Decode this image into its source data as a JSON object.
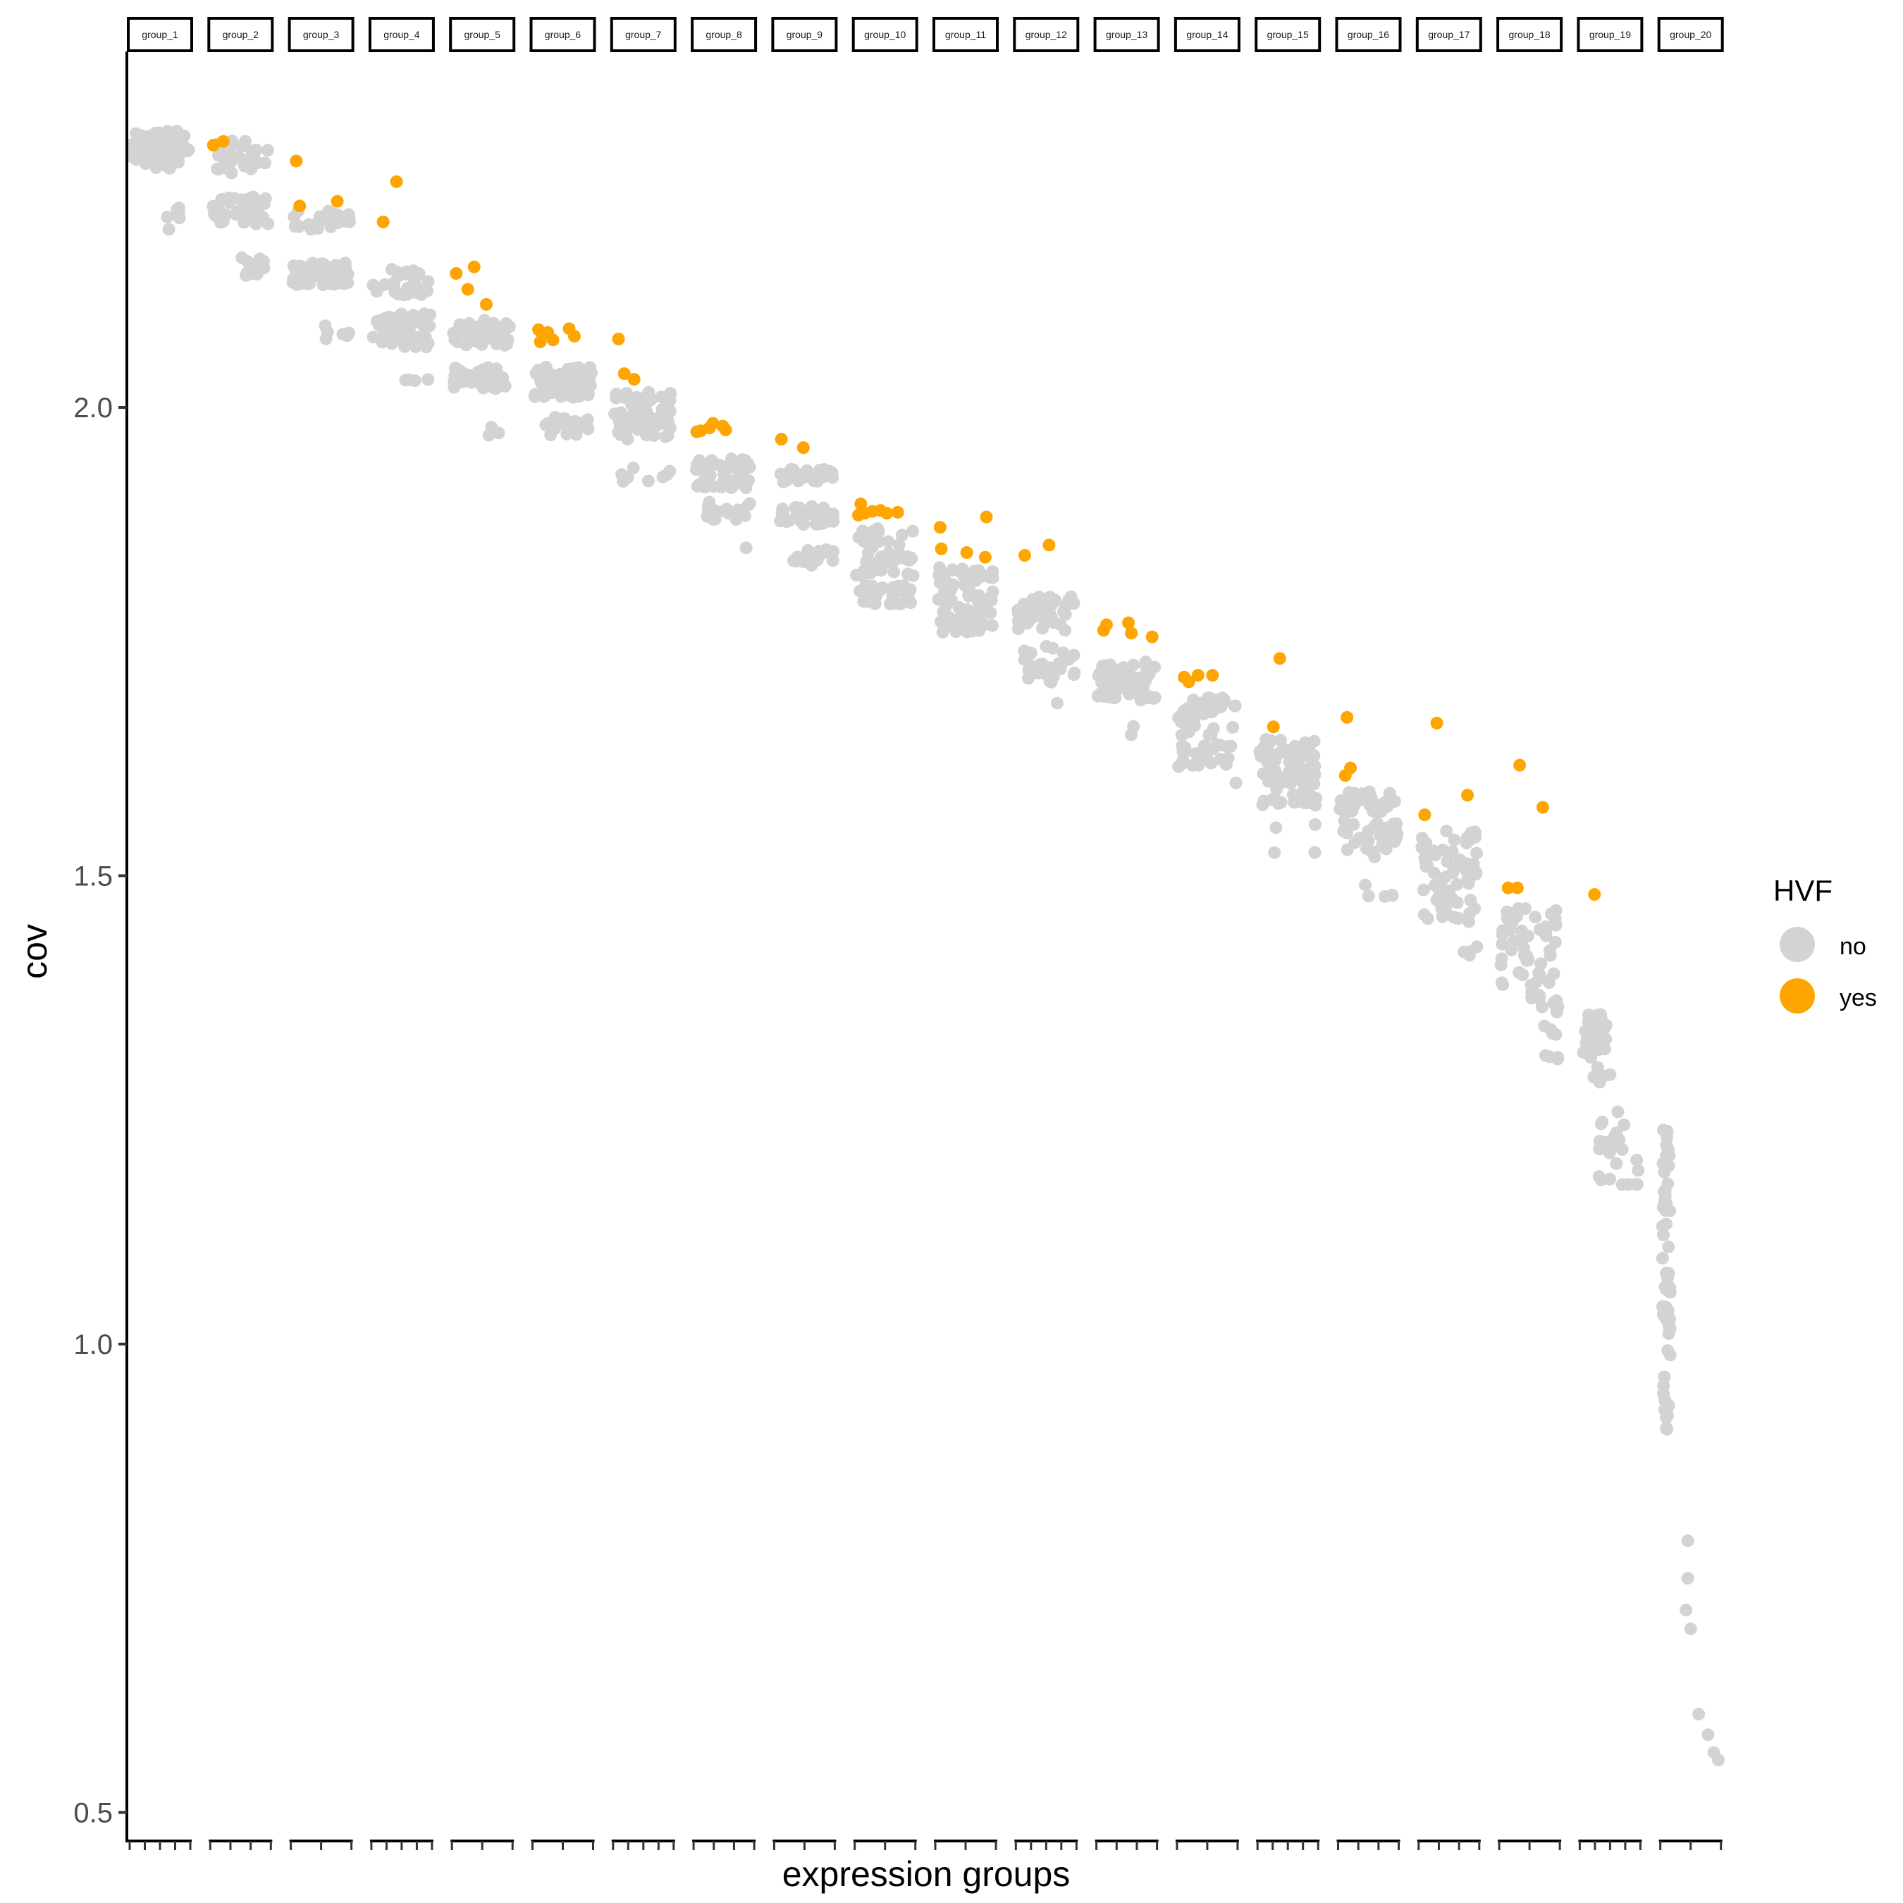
{
  "chart_data": {
    "type": "scatter",
    "title": "",
    "xlabel": "expression groups",
    "ylabel": "cov",
    "ylim": [
      0.47,
      2.38
    ],
    "yticks": [
      0.5,
      1.0,
      1.5,
      2.0
    ],
    "ytick_labels": [
      "0.5",
      "1.0",
      "1.5",
      "2.0"
    ],
    "legend": {
      "title": "HVF",
      "position": "right",
      "entries": [
        {
          "label": "no",
          "color": "#D3D3D3"
        },
        {
          "label": "yes",
          "color": "#FFA500"
        }
      ]
    },
    "x_units_note": "within-group position 0-10",
    "groups": [
      {
        "name": "group_1",
        "ticks": 5,
        "clusters": [
          [
            0,
            10,
            2.255,
            2.295,
            60
          ],
          [
            5,
            10,
            2.19,
            2.215,
            6
          ]
        ],
        "yes": []
      },
      {
        "name": "group_2",
        "ticks": 4,
        "clusters": [
          [
            0,
            10,
            2.25,
            2.285,
            30
          ],
          [
            0,
            10,
            2.195,
            2.225,
            40
          ],
          [
            5,
            10,
            2.14,
            2.16,
            14
          ]
        ],
        "yes": [
          [
            0.3,
            2.28
          ],
          [
            2,
            2.284
          ]
        ]
      },
      {
        "name": "group_3",
        "ticks": 3,
        "clusters": [
          [
            0,
            10,
            2.19,
            2.21,
            25
          ],
          [
            0,
            10,
            2.13,
            2.155,
            50
          ],
          [
            5,
            10,
            2.073,
            2.09,
            6
          ]
        ],
        "yes": [
          [
            0.7,
            2.263
          ],
          [
            1.3,
            2.215
          ],
          [
            7.8,
            2.22
          ]
        ]
      },
      {
        "name": "group_4",
        "ticks": 5,
        "clusters": [
          [
            0,
            10,
            2.12,
            2.148,
            25
          ],
          [
            0,
            10,
            2.064,
            2.1,
            55
          ],
          [
            5,
            10,
            2.027,
            2.03,
            4
          ]
        ],
        "yes": [
          [
            1.8,
            2.198
          ],
          [
            4.1,
            2.241
          ]
        ]
      },
      {
        "name": "group_5",
        "ticks": 3,
        "clusters": [
          [
            0,
            10,
            2.066,
            2.094,
            45
          ],
          [
            0,
            10,
            2.02,
            2.044,
            40
          ],
          [
            6,
            8,
            1.97,
            1.98,
            3
          ]
        ],
        "yes": [
          [
            0.5,
            2.143
          ],
          [
            3.6,
            2.15
          ],
          [
            2.5,
            2.126
          ],
          [
            5.7,
            2.11
          ]
        ]
      },
      {
        "name": "group_6",
        "ticks": 3,
        "clusters": [
          [
            0,
            10,
            2.01,
            2.044,
            70
          ],
          [
            2,
            10,
            1.97,
            1.99,
            25
          ]
        ],
        "yes": [
          [
            0.8,
            2.083
          ],
          [
            1.5,
            2.078
          ],
          [
            2.4,
            2.08
          ],
          [
            3.3,
            2.072
          ],
          [
            6.1,
            2.084
          ],
          [
            7,
            2.076
          ],
          [
            1.1,
            2.07
          ]
        ]
      },
      {
        "name": "group_7",
        "ticks": 5,
        "clusters": [
          [
            0,
            10,
            1.966,
            2.018,
            70
          ],
          [
            1,
            10,
            1.92,
            1.936,
            8
          ]
        ],
        "yes": [
          [
            0.7,
            2.073
          ],
          [
            1.7,
            2.036
          ],
          [
            3.4,
            2.03
          ]
        ]
      },
      {
        "name": "group_8",
        "ticks": 4,
        "clusters": [
          [
            0,
            10,
            1.914,
            1.946,
            45
          ],
          [
            2,
            10,
            1.88,
            1.9,
            20
          ],
          [
            8,
            9,
            1.85,
            1.852,
            1
          ]
        ],
        "yes": [
          [
            1,
            1.975
          ],
          [
            2.5,
            1.978
          ],
          [
            3.1,
            1.983
          ],
          [
            4.8,
            1.98
          ],
          [
            5.3,
            1.976
          ],
          [
            0.3,
            1.974
          ]
        ]
      },
      {
        "name": "group_9",
        "ticks": 3,
        "clusters": [
          [
            0,
            10,
            1.92,
            1.934,
            25
          ],
          [
            0,
            10,
            1.875,
            1.895,
            40
          ],
          [
            3,
            10,
            1.83,
            1.85,
            20
          ]
        ],
        "yes": [
          [
            1,
            1.966
          ],
          [
            4.8,
            1.957
          ]
        ]
      },
      {
        "name": "group_10",
        "ticks": 3,
        "clusters": [
          [
            0,
            10,
            1.82,
            1.875,
            55
          ],
          [
            0,
            10,
            1.79,
            1.81,
            30
          ]
        ],
        "yes": [
          [
            0.8,
            1.897
          ],
          [
            1.5,
            1.887
          ],
          [
            2.8,
            1.889
          ],
          [
            4.2,
            1.89
          ],
          [
            5.3,
            1.887
          ],
          [
            7.2,
            1.888
          ],
          [
            0.4,
            1.885
          ]
        ]
      },
      {
        "name": "group_11",
        "ticks": 3,
        "clusters": [
          [
            0,
            10,
            1.76,
            1.83,
            75
          ]
        ],
        "yes": [
          [
            0.6,
            1.872
          ],
          [
            0.8,
            1.849
          ],
          [
            5.2,
            1.845
          ],
          [
            8.6,
            1.883
          ],
          [
            8.4,
            1.84
          ]
        ]
      },
      {
        "name": "group_12",
        "ticks": 5,
        "clusters": [
          [
            0,
            10,
            1.76,
            1.8,
            45
          ],
          [
            1,
            10,
            1.706,
            1.745,
            30
          ],
          [
            6,
            7,
            1.683,
            1.685,
            1
          ]
        ],
        "yes": [
          [
            1.3,
            1.842
          ],
          [
            5.5,
            1.853
          ]
        ]
      },
      {
        "name": "group_13",
        "ticks": 4,
        "clusters": [
          [
            0,
            10,
            1.686,
            1.73,
            60
          ],
          [
            1,
            7,
            1.65,
            1.666,
            2
          ]
        ],
        "yes": [
          [
            1.5,
            1.768
          ],
          [
            1,
            1.762
          ],
          [
            5.3,
            1.77
          ],
          [
            5.8,
            1.759
          ],
          [
            9.4,
            1.755
          ]
        ]
      },
      {
        "name": "group_14",
        "ticks": 3,
        "clusters": [
          [
            0,
            10,
            1.65,
            1.69,
            45
          ],
          [
            0,
            10,
            1.615,
            1.64,
            25
          ],
          [
            9,
            10,
            1.595,
            1.6,
            1
          ]
        ],
        "yes": [
          [
            1,
            1.712
          ],
          [
            3.4,
            1.714
          ],
          [
            5.9,
            1.714
          ],
          [
            1.8,
            1.707
          ]
        ]
      },
      {
        "name": "group_15",
        "ticks": 5,
        "clusters": [
          [
            0,
            10,
            1.575,
            1.647,
            70
          ],
          [
            2,
            10,
            1.52,
            1.555,
            4
          ]
        ],
        "yes": [
          [
            2.5,
            1.659
          ],
          [
            3.6,
            1.732
          ]
        ]
      },
      {
        "name": "group_16",
        "ticks": 4,
        "clusters": [
          [
            0,
            10,
            1.52,
            1.59,
            65
          ],
          [
            1,
            10,
            1.475,
            1.5,
            5
          ]
        ],
        "yes": [
          [
            1,
            1.607
          ],
          [
            1.9,
            1.615
          ],
          [
            1.3,
            1.669
          ]
        ]
      },
      {
        "name": "group_17",
        "ticks": 4,
        "clusters": [
          [
            0,
            10,
            1.445,
            1.55,
            65
          ],
          [
            6,
            10,
            1.415,
            1.425,
            4
          ]
        ],
        "yes": [
          [
            0.8,
            1.565
          ],
          [
            2.9,
            1.663
          ],
          [
            8.2,
            1.586
          ]
        ]
      },
      {
        "name": "group_18",
        "ticks": 3,
        "clusters": [
          [
            0,
            10,
            1.354,
            1.47,
            60
          ],
          [
            7,
            10,
            1.3,
            1.34,
            8
          ]
        ],
        "yes": [
          [
            1.3,
            1.487
          ],
          [
            2.9,
            1.487
          ],
          [
            3.3,
            1.618
          ],
          [
            7.3,
            1.573
          ]
        ]
      },
      {
        "name": "group_19",
        "ticks": 5,
        "clusters": [
          [
            0,
            5,
            1.276,
            1.354,
            35
          ],
          [
            3,
            10,
            1.17,
            1.26,
            25
          ]
        ],
        "yes": [
          [
            2.3,
            1.48
          ]
        ]
      },
      {
        "name": "group_20",
        "ticks": 3,
        "clusters": [
          [
            0,
            1.5,
            0.905,
            1.23,
            60
          ]
        ],
        "no": [
          [
            4.5,
            0.79
          ],
          [
            4.5,
            0.75
          ],
          [
            4.2,
            0.716
          ],
          [
            5,
            0.696
          ],
          [
            6.4,
            0.605
          ],
          [
            8,
            0.583
          ],
          [
            9,
            0.564
          ],
          [
            9.8,
            0.556
          ]
        ],
        "yes": []
      }
    ]
  }
}
